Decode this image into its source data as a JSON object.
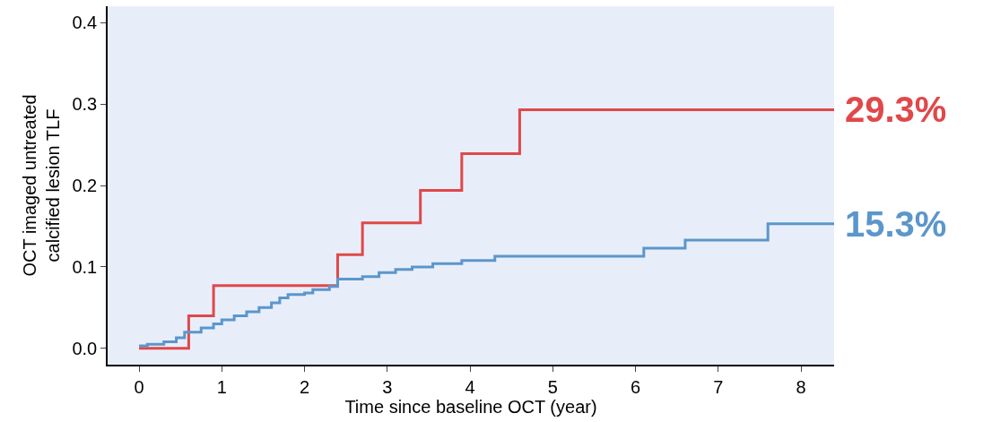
{
  "chart_data": {
    "type": "step",
    "xlabel": "Time since baseline OCT (year)",
    "ylabel": "OCT imaged untreated\ncalcified lesion TLF",
    "series": [
      {
        "color": "#e0484a",
        "x": [
          0,
          0.6,
          0.9,
          2.4,
          2.7,
          3.4,
          3.9,
          4.6,
          8.4
        ],
        "values": [
          0,
          0.04,
          0.077,
          0.115,
          0.154,
          0.194,
          0.239,
          0.293,
          0.293
        ]
      },
      {
        "color": "#5b96cc",
        "x": [
          0,
          0.1,
          0.3,
          0.45,
          0.55,
          0.75,
          0.9,
          1.0,
          1.15,
          1.3,
          1.45,
          1.6,
          1.7,
          1.8,
          2.0,
          2.1,
          2.3,
          2.4,
          2.7,
          2.9,
          3.1,
          3.3,
          3.55,
          3.9,
          4.3,
          6.1,
          6.6,
          7.6,
          8.4
        ],
        "values": [
          0.003,
          0.005,
          0.008,
          0.013,
          0.02,
          0.025,
          0.03,
          0.035,
          0.04,
          0.045,
          0.05,
          0.056,
          0.062,
          0.066,
          0.068,
          0.072,
          0.076,
          0.085,
          0.088,
          0.093,
          0.097,
          0.1,
          0.104,
          0.108,
          0.113,
          0.123,
          0.133,
          0.153,
          0.153
        ]
      }
    ],
    "annotations": [
      {
        "text": "29.3%",
        "x": 8.4,
        "y": 0.293
      },
      {
        "text": "15.3%",
        "x": 8.4,
        "y": 0.153
      }
    ],
    "xlim": [
      -0.38,
      8.4
    ],
    "xticks": [
      0,
      1,
      2,
      3,
      4,
      5,
      6,
      7,
      8
    ],
    "ylim": [
      -0.02,
      0.42
    ],
    "yticks": [
      {
        "value": 0,
        "label": "0.0"
      },
      0.1,
      0.2,
      0.3,
      0.4
    ],
    "grid": false,
    "legend": false,
    "marker": "none",
    "line_style": "solid"
  }
}
